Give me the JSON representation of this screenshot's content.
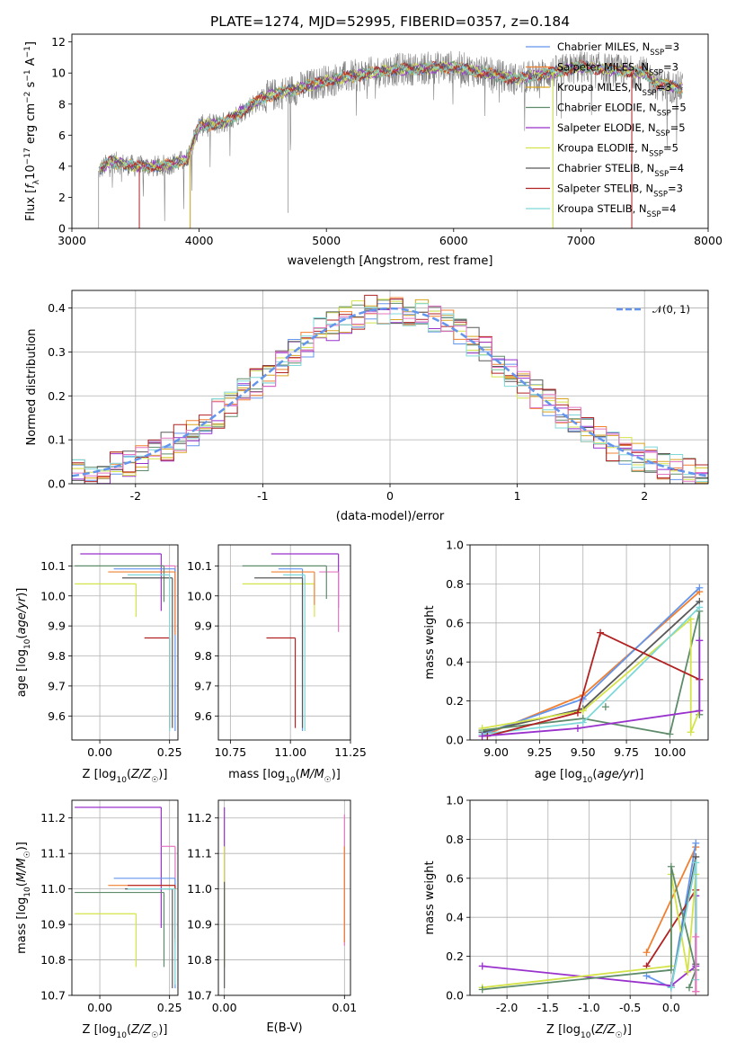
{
  "title": "PLATE=1274, MJD=52995, FIBERID=0357, z=0.184",
  "colors": {
    "Chabrier MILES": "#6495ed",
    "Salpeter MILES": "#f08030",
    "Kroupa MILES": "#d9a520",
    "Chabrier ELODIE": "#5e8c6a",
    "Salpeter ELODIE": "#9932cc",
    "Kroupa ELODIE": "#d4e34a",
    "Chabrier STELIB": "#595959",
    "Salpeter STELIB": "#b22222",
    "Kroupa STELIB": "#7fd8d8",
    "extra": "#e377c2",
    "spectrum": "#808080"
  },
  "chart_data": [
    {
      "id": "spectrum",
      "type": "line",
      "title": "PLATE=1274, MJD=52995, FIBERID=0357, z=0.184",
      "xlabel": "wavelength [Angstrom, rest frame]",
      "ylabel": "Flux [f_λ10^-17 erg cm^-2 s^-1 A^-1]",
      "xlim": [
        3000,
        8000
      ],
      "ylim": [
        0,
        12.5
      ],
      "xticks": [
        3000,
        4000,
        5000,
        6000,
        7000,
        8000
      ],
      "yticks": [
        0,
        2,
        4,
        6,
        8,
        10,
        12
      ],
      "grid": false,
      "legend_position": "right",
      "legend": [
        {
          "name": "Chabrier MILES, N",
          "sub": "SSP",
          "suffix": "=3"
        },
        {
          "name": "Salpeter MILES, N",
          "sub": "SSP",
          "suffix": "=3"
        },
        {
          "name": "Kroupa MILES, N",
          "sub": "SSP",
          "suffix": "=3"
        },
        {
          "name": "Chabrier ELODIE, N",
          "sub": "SSP",
          "suffix": "=5"
        },
        {
          "name": "Salpeter ELODIE, N",
          "sub": "SSP",
          "suffix": "=5"
        },
        {
          "name": "Kroupa ELODIE, N",
          "sub": "SSP",
          "suffix": "=5"
        },
        {
          "name": "Chabrier STELIB, N",
          "sub": "SSP",
          "suffix": "=4"
        },
        {
          "name": "Salpeter STELIB, N",
          "sub": "SSP",
          "suffix": "=3"
        },
        {
          "name": "Kroupa STELIB, N",
          "sub": "SSP",
          "suffix": "=4"
        }
      ],
      "continuum": [
        [
          3210,
          3.7
        ],
        [
          3300,
          4.3
        ],
        [
          3500,
          4.0
        ],
        [
          3700,
          4.0
        ],
        [
          3900,
          4.4
        ],
        [
          4000,
          6.6
        ],
        [
          4200,
          6.8
        ],
        [
          4500,
          8.4
        ],
        [
          5000,
          9.5
        ],
        [
          5500,
          10.2
        ],
        [
          6000,
          10.4
        ],
        [
          6500,
          9.6
        ],
        [
          7000,
          10.4
        ],
        [
          7500,
          10.0
        ],
        [
          7600,
          9.3
        ],
        [
          7800,
          9.0
        ]
      ],
      "data_range": [
        3210,
        7800
      ]
    },
    {
      "id": "residuals",
      "type": "line",
      "xlabel": "(data-model)/error",
      "ylabel": "Normed distribution",
      "xlim": [
        -2.5,
        2.5
      ],
      "ylim": [
        0,
        0.44
      ],
      "xticks": [
        -2,
        -1,
        0,
        1,
        2
      ],
      "yticks": [
        0.0,
        0.1,
        0.2,
        0.3,
        0.4
      ],
      "grid": true,
      "legend": [
        {
          "name": "𝒩(0, 1)"
        }
      ],
      "legend_position": "top-right",
      "bin_width": 0.1
    },
    {
      "id": "age-vs-Z",
      "type": "scatter",
      "xlabel": "Z [log10(Z/Z☉)]",
      "ylabel": "age  [log10(age/yr)]",
      "xlim": [
        -0.1,
        0.28
      ],
      "ylim": [
        9.52,
        10.17
      ],
      "xticks": [
        0.0,
        0.25
      ],
      "yticks": [
        9.6,
        9.7,
        9.8,
        9.9,
        10.0,
        10.1
      ],
      "grid": true,
      "errorbars": [
        {
          "color": "#b22222",
          "x": 0.25,
          "y": 9.86,
          "x_lo": 0.16,
          "y_lo": 9.56
        },
        {
          "color": "#9932cc",
          "x": 0.22,
          "y": 10.14,
          "x_lo": -0.07,
          "y_lo": 9.95
        },
        {
          "color": "#e377c2",
          "x": 0.27,
          "y": 10.1,
          "x_lo": 0.22,
          "y_lo": 9.88
        },
        {
          "color": "#6495ed",
          "x": 0.27,
          "y": 10.09,
          "x_lo": 0.05,
          "y_lo": 9.55
        },
        {
          "color": "#f08030",
          "x": 0.27,
          "y": 10.08,
          "x_lo": 0.03,
          "y_lo": 9.87
        },
        {
          "color": "#5e8c6a",
          "x": 0.23,
          "y": 10.1,
          "x_lo": -0.09,
          "y_lo": 9.98
        },
        {
          "color": "#d4e34a",
          "x": 0.13,
          "y": 10.04,
          "x_lo": -0.09,
          "y_lo": 9.93
        },
        {
          "color": "#595959",
          "x": 0.26,
          "y": 10.06,
          "x_lo": 0.08,
          "y_lo": 9.56
        },
        {
          "color": "#7fd8d8",
          "x": 0.25,
          "y": 10.07,
          "x_lo": 0.1,
          "y_lo": 9.55
        }
      ]
    },
    {
      "id": "age-vs-mass",
      "type": "scatter",
      "xlabel": "mass [log10(M/M☉)]",
      "ylabel": "",
      "xlim": [
        10.7,
        11.25
      ],
      "ylim": [
        9.52,
        10.17
      ],
      "xticks": [
        10.75,
        11.0,
        11.25
      ],
      "yticks": [
        9.6,
        9.7,
        9.8,
        9.9,
        10.0,
        10.1
      ],
      "grid": true,
      "errorbars": [
        {
          "color": "#9932cc",
          "x": 11.2,
          "y": 10.14,
          "x_lo": 10.92,
          "y_lo": 9.96
        },
        {
          "color": "#e377c2",
          "x": 11.2,
          "y": 10.08,
          "x_lo": 11.12,
          "y_lo": 9.88
        },
        {
          "color": "#6495ed",
          "x": 11.05,
          "y": 10.09,
          "x_lo": 10.95,
          "y_lo": 9.55
        },
        {
          "color": "#5e8c6a",
          "x": 11.15,
          "y": 10.1,
          "x_lo": 10.8,
          "y_lo": 9.99
        },
        {
          "color": "#d4e34a",
          "x": 11.1,
          "y": 10.04,
          "x_lo": 10.8,
          "y_lo": 9.93
        },
        {
          "color": "#f08030",
          "x": 11.1,
          "y": 10.08,
          "x_lo": 10.92,
          "y_lo": 9.97
        },
        {
          "color": "#b22222",
          "x": 11.02,
          "y": 9.86,
          "x_lo": 10.9,
          "y_lo": 9.56
        },
        {
          "color": "#595959",
          "x": 11.05,
          "y": 10.06,
          "x_lo": 10.85,
          "y_lo": 9.56
        },
        {
          "color": "#7fd8d8",
          "x": 11.06,
          "y": 10.07,
          "x_lo": 10.97,
          "y_lo": 9.55
        }
      ]
    },
    {
      "id": "weight-vs-age",
      "type": "line",
      "xlabel": "age  [log10(age/yr)]",
      "ylabel": "mass weight",
      "xlim": [
        8.85,
        10.22
      ],
      "ylim": [
        0,
        1.0
      ],
      "xticks": [
        9.0,
        9.25,
        9.5,
        9.75,
        10.0
      ],
      "yticks": [
        0.0,
        0.2,
        0.4,
        0.6,
        0.8,
        1.0
      ],
      "grid": true,
      "series": [
        {
          "color": "#f08030",
          "points": [
            [
              8.92,
              0.02
            ],
            [
              9.5,
              0.23
            ],
            [
              10.17,
              0.76
            ]
          ]
        },
        {
          "color": "#6495ed",
          "points": [
            [
              8.92,
              0.03
            ],
            [
              9.5,
              0.21
            ],
            [
              10.17,
              0.78
            ]
          ]
        },
        {
          "color": "#595959",
          "points": [
            [
              8.92,
              0.04
            ],
            [
              9.5,
              0.16
            ],
            [
              10.17,
              0.71
            ]
          ]
        },
        {
          "color": "#5e8c6a",
          "points": [
            [
              8.92,
              0.05
            ],
            [
              9.5,
              0.11
            ],
            [
              10.0,
              0.03
            ],
            [
              10.17,
              0.66
            ],
            [
              10.17,
              0.13
            ]
          ]
        },
        {
          "color": "#d4e34a",
          "points": [
            [
              8.92,
              0.06
            ],
            [
              9.5,
              0.15
            ],
            [
              10.12,
              0.62
            ],
            [
              10.12,
              0.04
            ],
            [
              10.17,
              0.15
            ]
          ]
        },
        {
          "color": "#7fd8d8",
          "points": [
            [
              8.92,
              0.03
            ],
            [
              9.5,
              0.09
            ],
            [
              10.17,
              0.68
            ]
          ]
        },
        {
          "color": "#b22222",
          "points": [
            [
              8.95,
              0.02
            ],
            [
              9.47,
              0.14
            ],
            [
              9.6,
              0.55
            ],
            [
              10.17,
              0.31
            ]
          ]
        },
        {
          "color": "#9932cc",
          "points": [
            [
              8.92,
              0.02
            ],
            [
              9.47,
              0.06
            ],
            [
              10.17,
              0.15
            ],
            [
              10.17,
              0.51
            ]
          ]
        },
        {
          "color": "#5e8c6a",
          "points": [
            [
              9.63,
              0.17
            ]
          ]
        }
      ]
    },
    {
      "id": "mass-vs-Z",
      "type": "scatter",
      "xlabel": "Z [log10(Z/Z☉)]",
      "ylabel": "mass [log10(M/M☉)]",
      "xlim": [
        -0.1,
        0.28
      ],
      "ylim": [
        10.7,
        11.25
      ],
      "xticks": [
        0.0,
        0.25
      ],
      "yticks": [
        10.7,
        10.8,
        10.9,
        11.0,
        11.1,
        11.2
      ],
      "grid": true,
      "errorbars": [
        {
          "color": "#9932cc",
          "x": 0.22,
          "y": 11.23,
          "x_lo": -0.09,
          "y_lo": 10.89
        },
        {
          "color": "#e377c2",
          "x": 0.27,
          "y": 11.12,
          "x_lo": 0.22,
          "y_lo": 10.84
        },
        {
          "color": "#6495ed",
          "x": 0.27,
          "y": 11.03,
          "x_lo": 0.05,
          "y_lo": 10.72
        },
        {
          "color": "#d4e34a",
          "x": 0.13,
          "y": 10.93,
          "x_lo": -0.09,
          "y_lo": 10.78
        },
        {
          "color": "#5e8c6a",
          "x": 0.23,
          "y": 10.99,
          "x_lo": -0.09,
          "y_lo": 10.78
        },
        {
          "color": "#f08030",
          "x": 0.27,
          "y": 11.01,
          "x_lo": 0.03,
          "y_lo": 10.85
        },
        {
          "color": "#b22222",
          "x": 0.27,
          "y": 11.01,
          "x_lo": 0.1,
          "y_lo": 10.86
        },
        {
          "color": "#595959",
          "x": 0.26,
          "y": 11.0,
          "x_lo": 0.09,
          "y_lo": 10.72
        },
        {
          "color": "#7fd8d8",
          "x": 0.27,
          "y": 11.0,
          "x_lo": 0.1,
          "y_lo": 10.73
        }
      ]
    },
    {
      "id": "mass-vs-EBV",
      "type": "scatter",
      "xlabel": "E(B-V)",
      "ylabel": "",
      "xlim": [
        -0.0005,
        0.0105
      ],
      "ylim": [
        10.7,
        11.25
      ],
      "xticks": [
        0.0,
        0.01
      ],
      "xticklabels": [
        "0.00",
        "0.01"
      ],
      "yticks": [
        10.7,
        10.8,
        10.9,
        11.0,
        11.1,
        11.2
      ],
      "grid": true,
      "errorbars": [
        {
          "color": "#9932cc",
          "x": 0.0,
          "y_hi": 11.23,
          "y_lo": 10.78
        },
        {
          "color": "#d4e34a",
          "x": 0.0,
          "y_hi": 11.12,
          "y_lo": 10.78
        },
        {
          "color": "#595959",
          "x": 0.0,
          "y_hi": 11.02,
          "y_lo": 10.72
        },
        {
          "color": "#e377c2",
          "x": 0.01,
          "y_hi": 11.21,
          "y_lo": 10.84
        },
        {
          "color": "#f08030",
          "x": 0.01,
          "y_hi": 11.12,
          "y_lo": 10.85
        }
      ]
    },
    {
      "id": "weight-vs-Z",
      "type": "line",
      "xlabel": "Z [log10(Z/Z☉)]",
      "ylabel": "mass weight",
      "xlim": [
        -2.45,
        0.45
      ],
      "ylim": [
        0,
        1.0
      ],
      "xticks": [
        -2.0,
        -1.5,
        -1.0,
        -0.5,
        0.0
      ],
      "yticks": [
        0.0,
        0.2,
        0.4,
        0.6,
        0.8,
        1.0
      ],
      "grid": true,
      "series": [
        {
          "color": "#f08030",
          "points": [
            [
              -0.3,
              0.22
            ],
            [
              0.3,
              0.76
            ]
          ]
        },
        {
          "color": "#6495ed",
          "points": [
            [
              -0.3,
              0.1
            ],
            [
              0.0,
              0.04
            ],
            [
              0.3,
              0.78
            ]
          ]
        },
        {
          "color": "#b22222",
          "points": [
            [
              -0.3,
              0.15
            ],
            [
              0.3,
              0.54
            ],
            [
              0.3,
              0.02
            ]
          ]
        },
        {
          "color": "#9932cc",
          "points": [
            [
              -2.3,
              0.15
            ],
            [
              0.0,
              0.05
            ],
            [
              0.3,
              0.15
            ],
            [
              0.3,
              0.51
            ]
          ]
        },
        {
          "color": "#d4e34a",
          "points": [
            [
              -2.3,
              0.04
            ],
            [
              0.0,
              0.15
            ],
            [
              0.0,
              0.62
            ],
            [
              0.2,
              0.12
            ],
            [
              0.3,
              0.62
            ]
          ]
        },
        {
          "color": "#5e8c6a",
          "points": [
            [
              -2.3,
              0.03
            ],
            [
              0.0,
              0.13
            ],
            [
              0.0,
              0.66
            ],
            [
              0.3,
              0.13
            ],
            [
              0.22,
              0.04
            ]
          ]
        },
        {
          "color": "#595959",
          "points": [
            [
              0.0,
              0.04
            ],
            [
              0.3,
              0.71
            ],
            [
              0.3,
              0.16
            ]
          ]
        },
        {
          "color": "#7fd8d8",
          "points": [
            [
              0.0,
              0.04
            ],
            [
              0.3,
              0.68
            ],
            [
              0.3,
              0.08
            ]
          ]
        },
        {
          "color": "#e377c2",
          "points": [
            [
              0.3,
              0.3
            ],
            [
              0.3,
              0.02
            ]
          ]
        }
      ]
    }
  ]
}
